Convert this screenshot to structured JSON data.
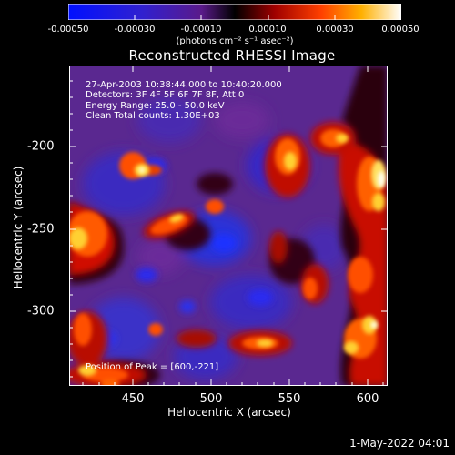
{
  "colorbar": {
    "ticks": [
      "-0.00050",
      "-0.00030",
      "-0.00010",
      "0.00010",
      "0.00030",
      "0.00050"
    ],
    "unit": "(photons cm⁻² s⁻¹ asec⁻²)"
  },
  "plot": {
    "title": "Reconstructed RHESSI Image",
    "info_lines": [
      "27-Apr-2003 10:38:44.000 to 10:40:20.000",
      "Detectors: 3F 4F 5F 6F 7F 8F, Att 0",
      "Energy Range: 25.0 - 50.0 keV",
      "Clean    Total counts: 1.30E+03"
    ],
    "peak_label": "Position of Peak = [600,-221]",
    "x_label": "Heliocentric X (arcsec)",
    "y_label": "Heliocentric Y (arcsec)",
    "x_ticks": [
      "450",
      "500",
      "550",
      "600"
    ],
    "y_ticks": [
      "-200",
      "-250",
      "-300"
    ]
  },
  "footer": {
    "date": "1-May-2022 04:01"
  }
}
